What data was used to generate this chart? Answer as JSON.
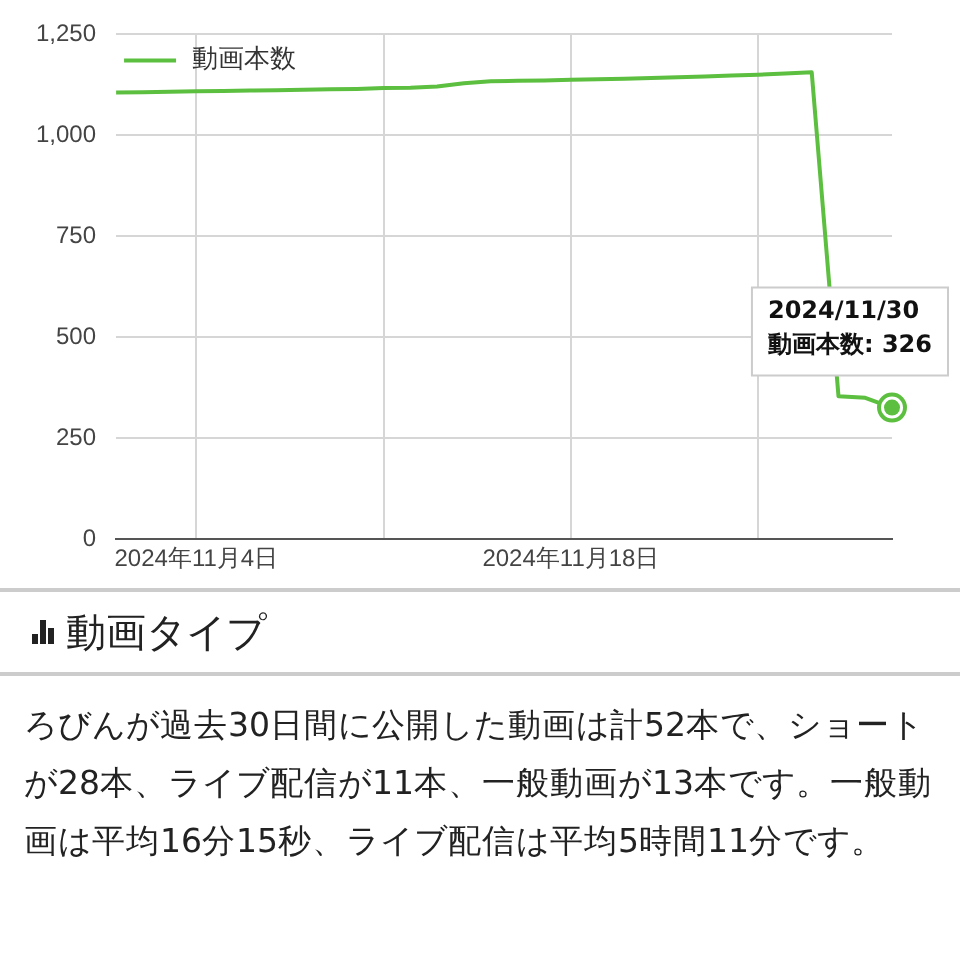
{
  "chart_data": {
    "type": "line",
    "x": [
      "2024-11-01",
      "2024-11-02",
      "2024-11-03",
      "2024-11-04",
      "2024-11-05",
      "2024-11-06",
      "2024-11-07",
      "2024-11-08",
      "2024-11-09",
      "2024-11-10",
      "2024-11-11",
      "2024-11-12",
      "2024-11-13",
      "2024-11-14",
      "2024-11-15",
      "2024-11-16",
      "2024-11-17",
      "2024-11-18",
      "2024-11-19",
      "2024-11-20",
      "2024-11-21",
      "2024-11-22",
      "2024-11-23",
      "2024-11-24",
      "2024-11-25",
      "2024-11-26",
      "2024-11-27",
      "2024-11-28",
      "2024-11-29",
      "2024-11-30"
    ],
    "series": [
      {
        "name": "動画本数",
        "color": "#5cbf3f",
        "values": [
          1106,
          1107,
          1108,
          1109,
          1110,
          1111,
          1112,
          1113,
          1114,
          1115,
          1117,
          1118,
          1121,
          1129,
          1134,
          1135,
          1136,
          1138,
          1139,
          1140,
          1142,
          1144,
          1146,
          1148,
          1150,
          1153,
          1156,
          354,
          350,
          326
        ]
      }
    ],
    "xlim": [
      "2024-11-01",
      "2024-11-30"
    ],
    "xticks": [
      {
        "value": "2024-11-04",
        "label": "2024年11月4日"
      },
      {
        "value": "2024-11-11",
        "label": null
      },
      {
        "value": "2024-11-18",
        "label": "2024年11月18日"
      },
      {
        "value": "2024-11-25",
        "label": null
      }
    ],
    "ylim": [
      0,
      1250
    ],
    "yticks": [
      {
        "value": 0,
        "label": "0"
      },
      {
        "value": 250,
        "label": "250"
      },
      {
        "value": 500,
        "label": "500"
      },
      {
        "value": 750,
        "label": "750"
      },
      {
        "value": 1000,
        "label": "1,000"
      },
      {
        "value": 1250,
        "label": "1,250"
      }
    ],
    "grid": true,
    "legend": "top left",
    "marker": "none",
    "line_style": "solid",
    "annotations": [
      {
        "text": "2024/11/30\n動画本数: 326",
        "x": "2024-11-30",
        "y": 326
      },
      "動画タイプ",
      "ろびんが過去30日間に公開した動画は計52本で、ショートが28本、ライブ配信が11本、一般動画が13本です。一般動画は平均16分15秒、ライブ配信は平均5時間11分です。"
    ]
  }
}
